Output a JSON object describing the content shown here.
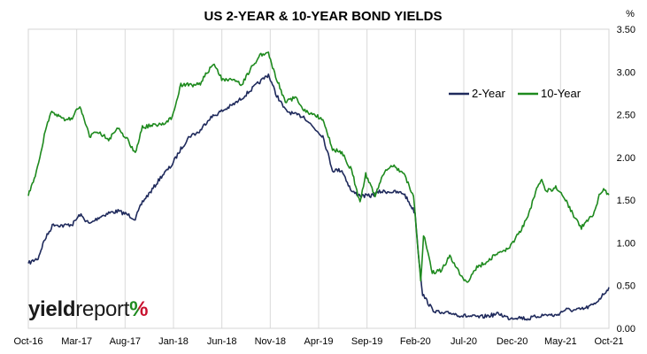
{
  "chart_data": {
    "type": "line",
    "title": "US 2-YEAR & 10-YEAR BOND YIELDS",
    "y_unit": "%",
    "ylim": [
      0,
      3.5
    ],
    "y_ticks": [
      "0.00",
      "0.50",
      "1.00",
      "1.50",
      "2.00",
      "2.50",
      "3.00",
      "3.50"
    ],
    "x_ticks": [
      "Oct-16",
      "Mar-17",
      "Aug-17",
      "Jan-18",
      "Jun-18",
      "Nov-18",
      "Apr-19",
      "Sep-19",
      "Feb-20",
      "Jul-20",
      "Dec-20",
      "May-21",
      "Oct-21"
    ],
    "grid": "vertical",
    "legend_position": "top-right",
    "series": [
      {
        "name": "2-Year",
        "color": "#1f2a5c",
        "points": [
          [
            "2016-10-01",
            0.76
          ],
          [
            "2016-11-01",
            0.82
          ],
          [
            "2016-11-20",
            1.02
          ],
          [
            "2016-12-20",
            1.22
          ],
          [
            "2017-01-20",
            1.2
          ],
          [
            "2017-02-20",
            1.22
          ],
          [
            "2017-03-15",
            1.33
          ],
          [
            "2017-04-15",
            1.22
          ],
          [
            "2017-05-15",
            1.3
          ],
          [
            "2017-06-15",
            1.35
          ],
          [
            "2017-07-15",
            1.37
          ],
          [
            "2017-08-15",
            1.33
          ],
          [
            "2017-09-08",
            1.28
          ],
          [
            "2017-10-01",
            1.48
          ],
          [
            "2017-11-01",
            1.62
          ],
          [
            "2017-12-01",
            1.78
          ],
          [
            "2018-01-01",
            1.9
          ],
          [
            "2018-02-01",
            2.1
          ],
          [
            "2018-03-01",
            2.25
          ],
          [
            "2018-04-01",
            2.3
          ],
          [
            "2018-05-01",
            2.45
          ],
          [
            "2018-06-01",
            2.52
          ],
          [
            "2018-07-01",
            2.58
          ],
          [
            "2018-08-01",
            2.65
          ],
          [
            "2018-09-01",
            2.75
          ],
          [
            "2018-10-01",
            2.85
          ],
          [
            "2018-11-08",
            2.97
          ],
          [
            "2018-12-01",
            2.75
          ],
          [
            "2019-01-01",
            2.55
          ],
          [
            "2019-02-01",
            2.5
          ],
          [
            "2019-03-01",
            2.48
          ],
          [
            "2019-04-01",
            2.35
          ],
          [
            "2019-05-01",
            2.25
          ],
          [
            "2019-06-01",
            1.85
          ],
          [
            "2019-07-01",
            1.85
          ],
          [
            "2019-08-01",
            1.6
          ],
          [
            "2019-09-01",
            1.55
          ],
          [
            "2019-10-01",
            1.55
          ],
          [
            "2019-11-01",
            1.6
          ],
          [
            "2019-12-01",
            1.6
          ],
          [
            "2020-01-15",
            1.58
          ],
          [
            "2020-02-20",
            1.35
          ],
          [
            "2020-03-01",
            0.9
          ],
          [
            "2020-03-15",
            0.4
          ],
          [
            "2020-04-15",
            0.22
          ],
          [
            "2020-05-15",
            0.17
          ],
          [
            "2020-06-15",
            0.18
          ],
          [
            "2020-07-15",
            0.15
          ],
          [
            "2020-08-15",
            0.14
          ],
          [
            "2020-09-15",
            0.13
          ],
          [
            "2020-10-15",
            0.15
          ],
          [
            "2020-11-15",
            0.17
          ],
          [
            "2020-12-15",
            0.12
          ],
          [
            "2021-01-15",
            0.13
          ],
          [
            "2021-02-15",
            0.11
          ],
          [
            "2021-03-15",
            0.14
          ],
          [
            "2021-04-15",
            0.16
          ],
          [
            "2021-05-15",
            0.15
          ],
          [
            "2021-06-15",
            0.22
          ],
          [
            "2021-07-15",
            0.21
          ],
          [
            "2021-08-15",
            0.23
          ],
          [
            "2021-09-15",
            0.28
          ],
          [
            "2021-10-15",
            0.4
          ],
          [
            "2021-11-01",
            0.48
          ]
        ]
      },
      {
        "name": "10-Year",
        "color": "#1e8a1e",
        "points": [
          [
            "2016-10-01",
            1.55
          ],
          [
            "2016-10-20",
            1.75
          ],
          [
            "2016-11-10",
            2.05
          ],
          [
            "2016-11-25",
            2.32
          ],
          [
            "2016-12-15",
            2.55
          ],
          [
            "2017-01-15",
            2.45
          ],
          [
            "2017-02-15",
            2.45
          ],
          [
            "2017-03-15",
            2.6
          ],
          [
            "2017-04-15",
            2.25
          ],
          [
            "2017-05-15",
            2.3
          ],
          [
            "2017-06-15",
            2.2
          ],
          [
            "2017-07-15",
            2.35
          ],
          [
            "2017-08-15",
            2.2
          ],
          [
            "2017-09-08",
            2.05
          ],
          [
            "2017-10-01",
            2.35
          ],
          [
            "2017-11-01",
            2.38
          ],
          [
            "2017-12-01",
            2.38
          ],
          [
            "2018-01-01",
            2.45
          ],
          [
            "2018-02-01",
            2.85
          ],
          [
            "2018-03-01",
            2.85
          ],
          [
            "2018-04-01",
            2.85
          ],
          [
            "2018-05-15",
            3.1
          ],
          [
            "2018-06-15",
            2.9
          ],
          [
            "2018-07-15",
            2.9
          ],
          [
            "2018-08-15",
            2.85
          ],
          [
            "2018-09-15",
            3.05
          ],
          [
            "2018-10-15",
            3.2
          ],
          [
            "2018-11-08",
            3.22
          ],
          [
            "2018-12-01",
            2.95
          ],
          [
            "2019-01-01",
            2.65
          ],
          [
            "2019-02-01",
            2.7
          ],
          [
            "2019-03-01",
            2.55
          ],
          [
            "2019-04-01",
            2.5
          ],
          [
            "2019-05-01",
            2.45
          ],
          [
            "2019-06-01",
            2.1
          ],
          [
            "2019-07-01",
            2.05
          ],
          [
            "2019-08-01",
            1.85
          ],
          [
            "2019-08-28",
            1.47
          ],
          [
            "2019-09-15",
            1.8
          ],
          [
            "2019-10-15",
            1.55
          ],
          [
            "2019-11-15",
            1.85
          ],
          [
            "2019-12-15",
            1.9
          ],
          [
            "2020-01-15",
            1.8
          ],
          [
            "2020-02-15",
            1.55
          ],
          [
            "2020-03-09",
            0.55
          ],
          [
            "2020-03-18",
            1.1
          ],
          [
            "2020-04-15",
            0.65
          ],
          [
            "2020-05-15",
            0.68
          ],
          [
            "2020-06-10",
            0.85
          ],
          [
            "2020-07-15",
            0.62
          ],
          [
            "2020-08-05",
            0.52
          ],
          [
            "2020-09-01",
            0.7
          ],
          [
            "2020-10-15",
            0.8
          ],
          [
            "2020-11-15",
            0.9
          ],
          [
            "2020-12-15",
            0.92
          ],
          [
            "2021-01-15",
            1.1
          ],
          [
            "2021-02-15",
            1.3
          ],
          [
            "2021-03-15",
            1.65
          ],
          [
            "2021-03-31",
            1.74
          ],
          [
            "2021-04-15",
            1.6
          ],
          [
            "2021-05-15",
            1.65
          ],
          [
            "2021-06-15",
            1.5
          ],
          [
            "2021-07-15",
            1.3
          ],
          [
            "2021-08-05",
            1.18
          ],
          [
            "2021-09-01",
            1.3
          ],
          [
            "2021-09-15",
            1.35
          ],
          [
            "2021-10-01",
            1.55
          ],
          [
            "2021-10-15",
            1.62
          ],
          [
            "2021-11-01",
            1.56
          ]
        ]
      }
    ]
  },
  "logo": {
    "part1": "yield",
    "part2": "report",
    "pct": "%",
    "pct_colors": [
      "#1e8a1e",
      "#c8102e"
    ]
  }
}
